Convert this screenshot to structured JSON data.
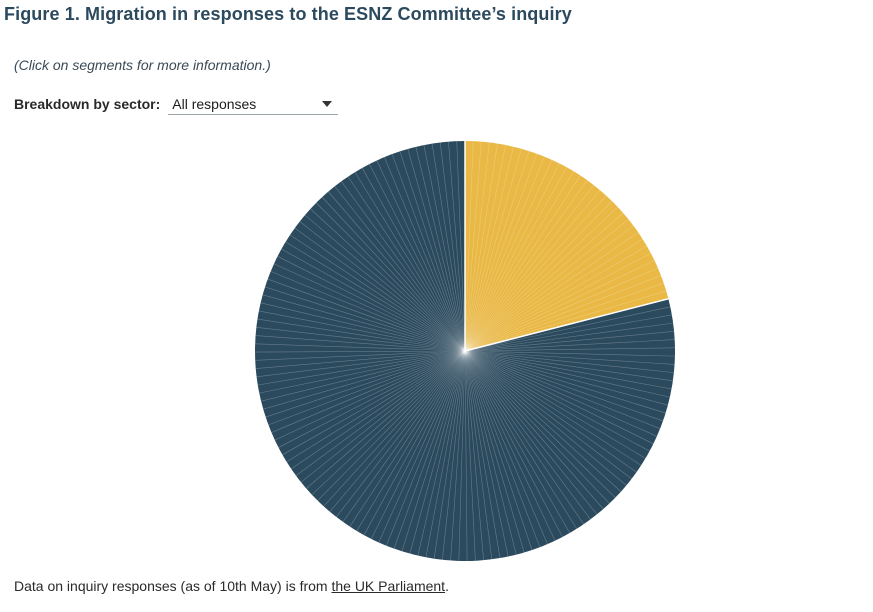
{
  "figure": {
    "title": "Figure 1. Migration in responses to the ESNZ Committee’s inquiry"
  },
  "hint": "(Click on segments for more information.)",
  "control": {
    "label": "Breakdown by sector:",
    "selected": "All responses"
  },
  "footer": {
    "text_before": "Data on inquiry responses (as of 10th May) is from ",
    "link_text": "the UK Parliament",
    "text_after": "."
  },
  "chart_data": {
    "type": "pie",
    "slices": [
      {
        "color": "#e9b845",
        "value": 21
      },
      {
        "color": "#2c4a5e",
        "value": 79
      }
    ],
    "note": "Each response is a thin individual segment; segments are grouped by colour."
  }
}
